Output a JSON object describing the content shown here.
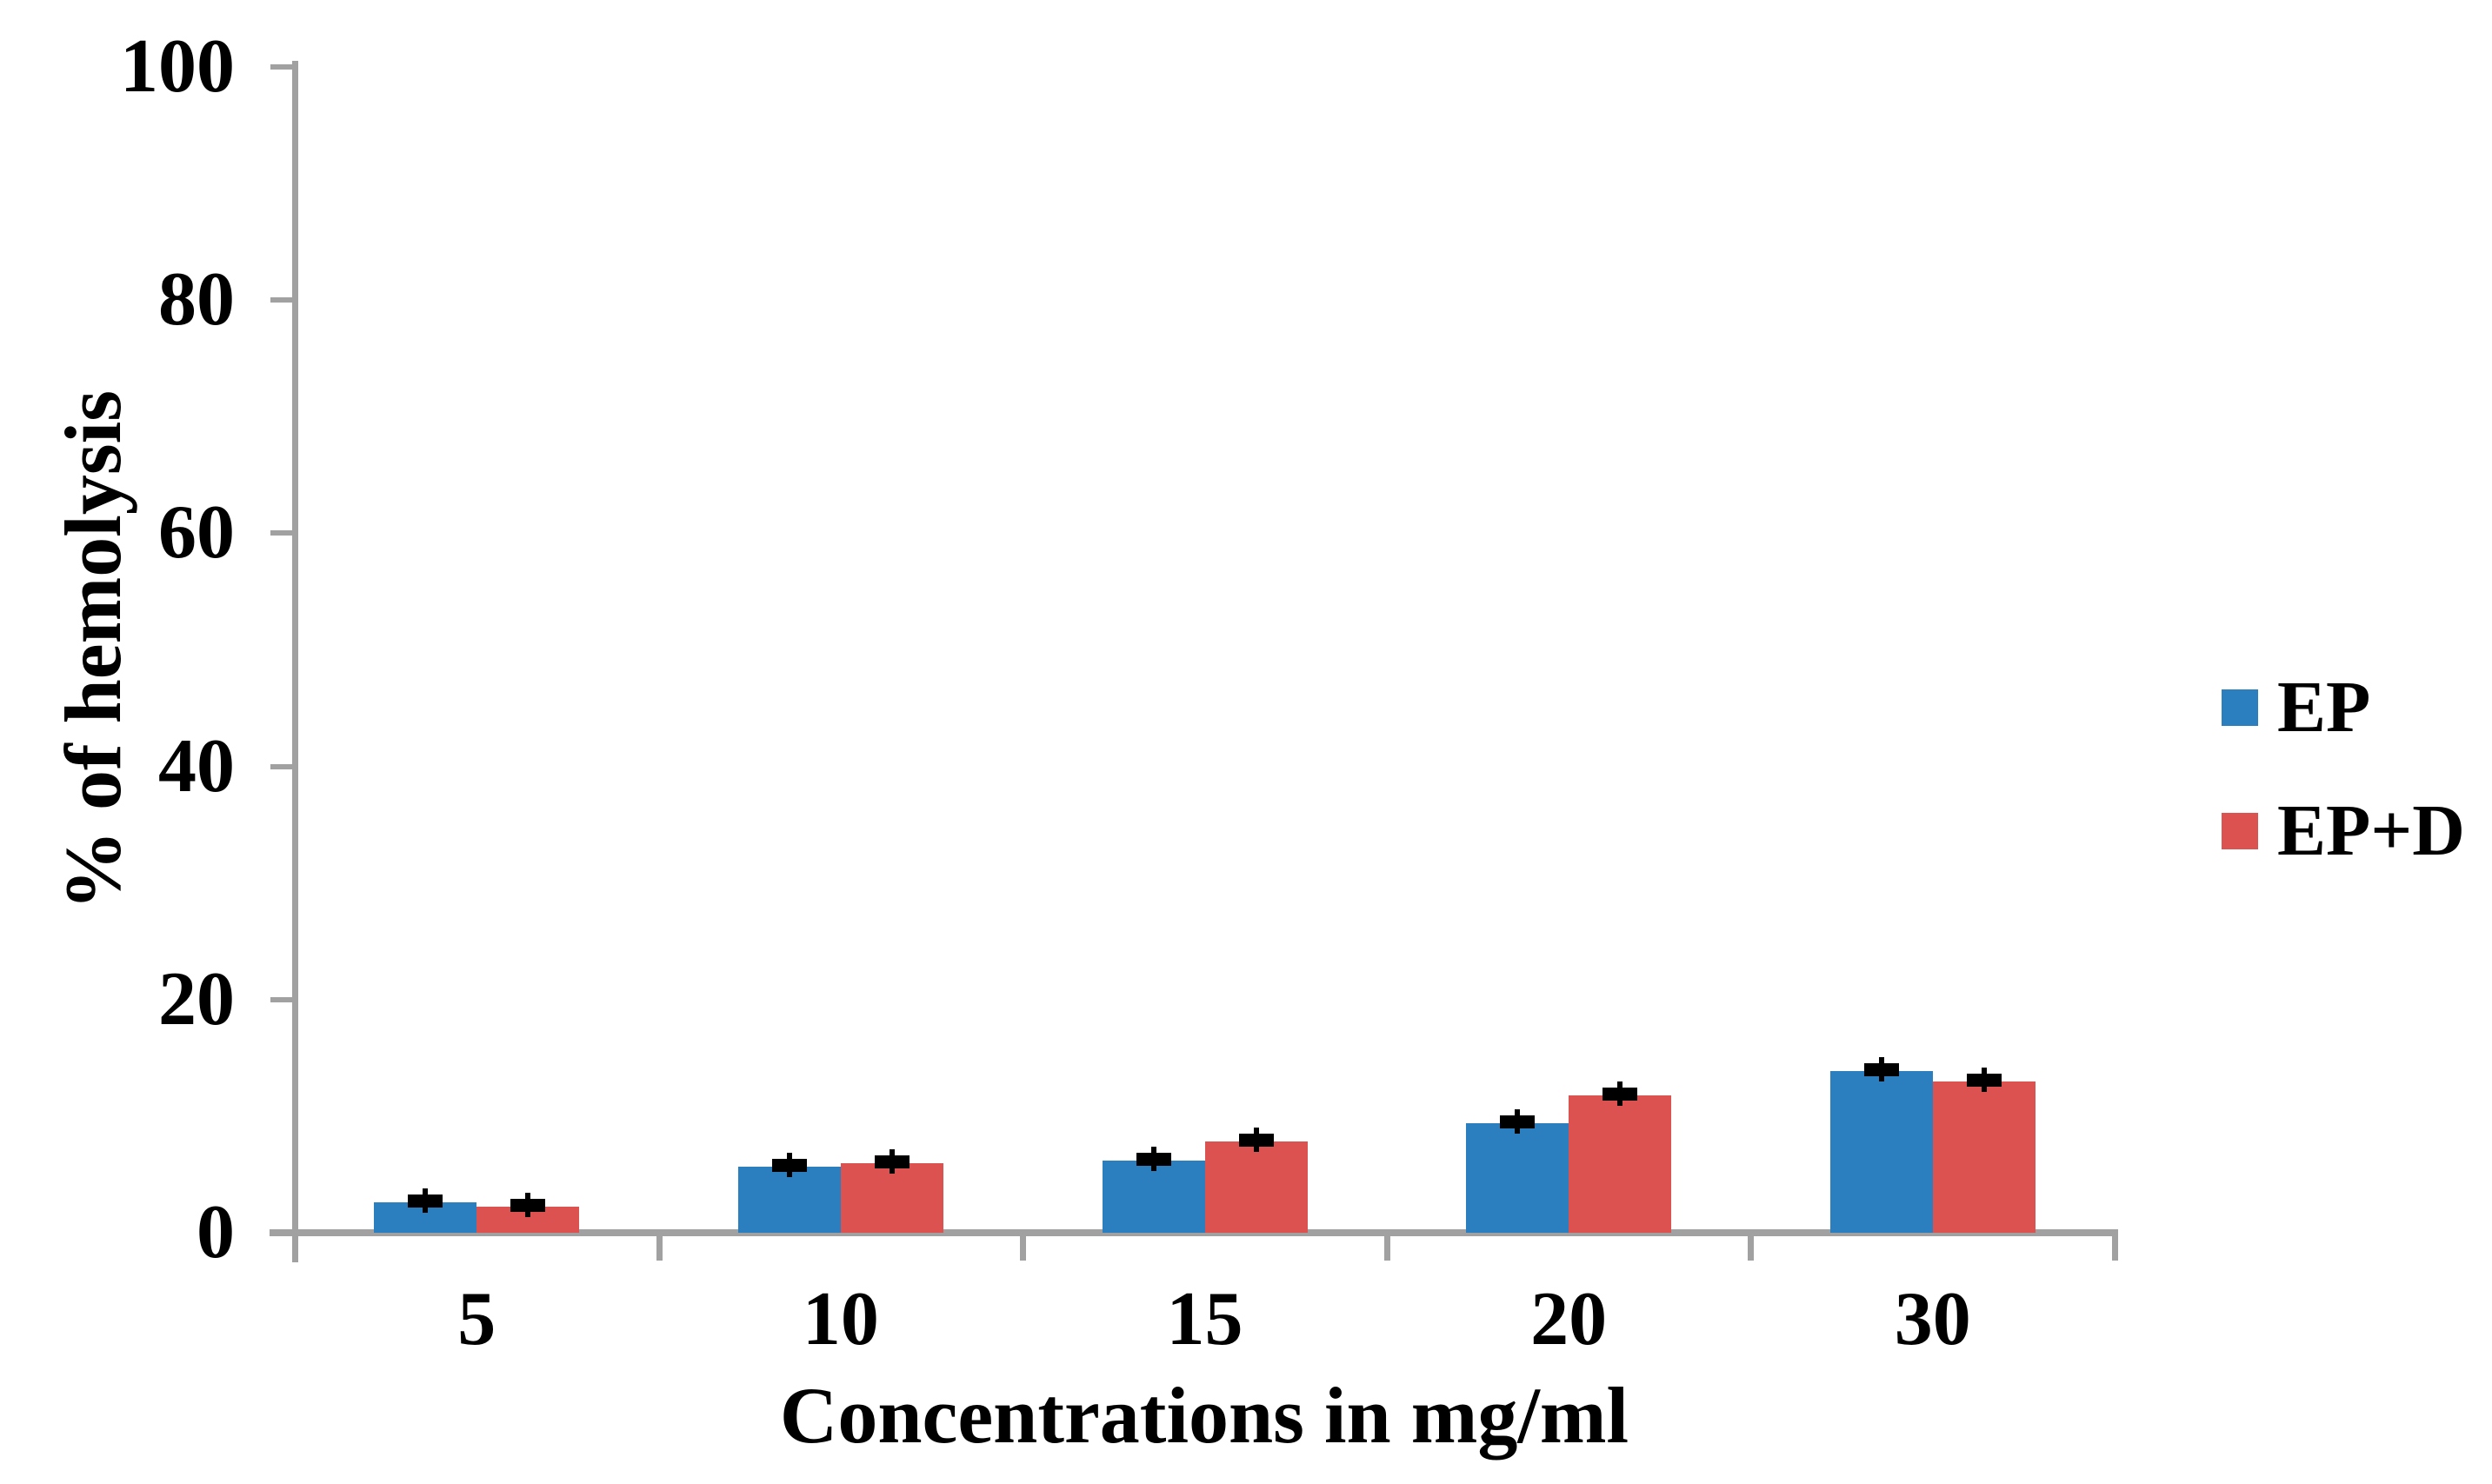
{
  "figure": {
    "y_axis_title": "% of hemolysis",
    "x_axis_title": "Concentrations in mg/ml"
  },
  "legend": {
    "items": [
      {
        "label": "EP",
        "color": "#2b7fbe"
      },
      {
        "label": "EP+D",
        "color": "#db5250"
      }
    ]
  },
  "chart_data": {
    "type": "bar",
    "title": "",
    "xlabel": "Concentrations in mg/ml",
    "ylabel": "% of hemolysis",
    "categories": [
      "5",
      "10",
      "15",
      "20",
      "30"
    ],
    "series": [
      {
        "name": "EP",
        "color": "#2b7fbe",
        "values": [
          2.6,
          5.7,
          6.2,
          9.4,
          13.9
        ],
        "errors": [
          0.3,
          0.3,
          0.3,
          0.3,
          0.4
        ]
      },
      {
        "name": "EP+D",
        "color": "#db5250",
        "values": [
          2.2,
          6.0,
          7.8,
          11.8,
          13.0
        ],
        "errors": [
          0.3,
          0.3,
          0.3,
          0.3,
          0.3
        ]
      }
    ],
    "ylim": [
      0,
      100
    ],
    "yticks": [
      0,
      20,
      40,
      60,
      80,
      100
    ],
    "grid": false,
    "error_bars": true,
    "legend_position": "right",
    "axis_color": "#a1a1a1",
    "text_color": "#000000"
  }
}
